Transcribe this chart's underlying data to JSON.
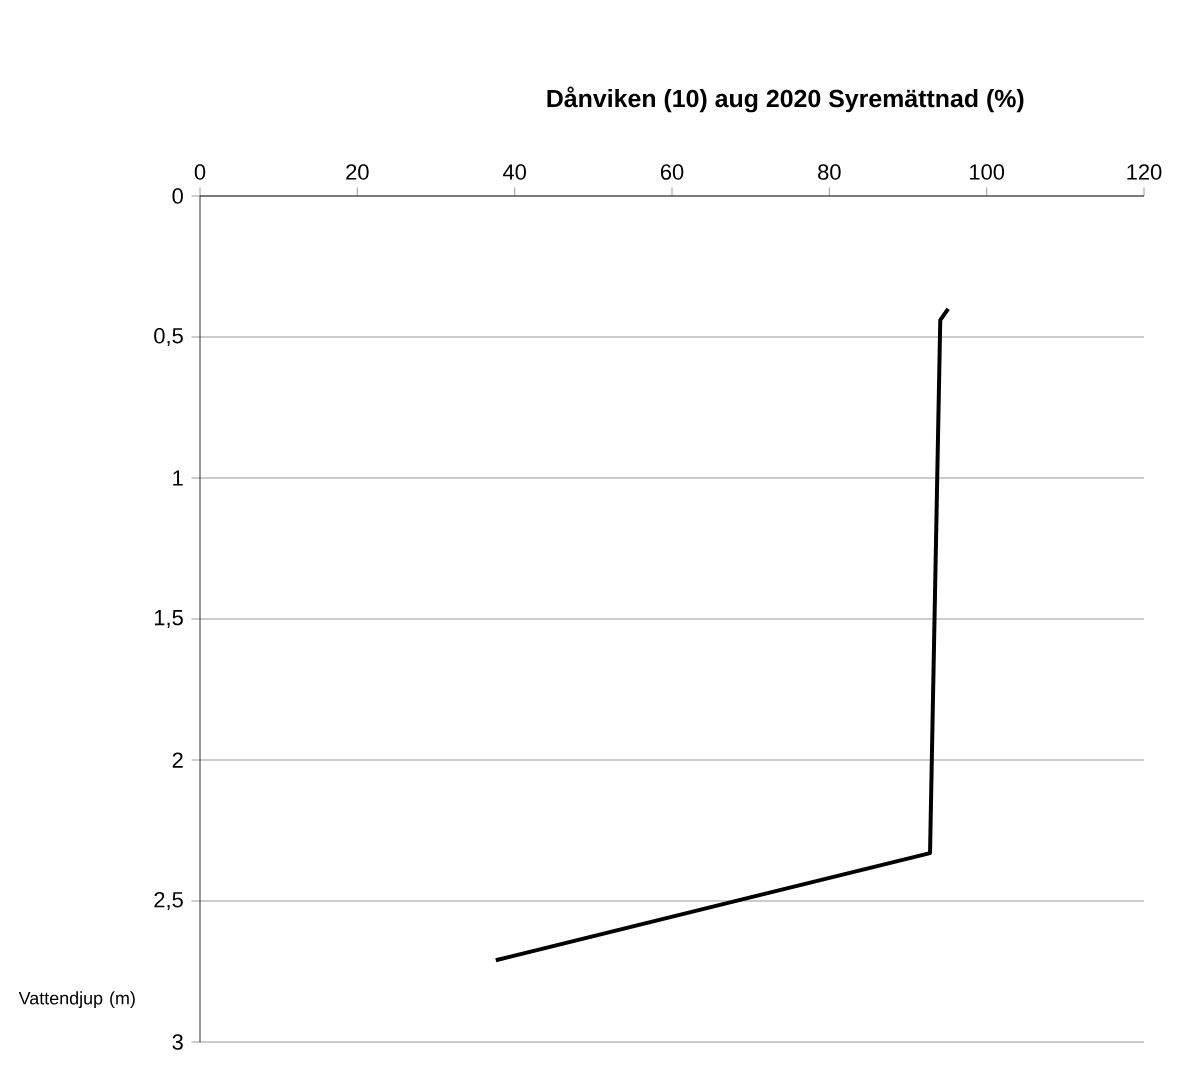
{
  "chart_data": {
    "type": "line",
    "title": "Dånviken (10) aug 2020 Syremättnad (%)",
    "ylabel": "Vattendjup (m)",
    "x": [
      95.1,
      94.1,
      92.8,
      37.6
    ],
    "series": [
      {
        "color": "#000000",
        "values": [
          0.4,
          0.44,
          2.33,
          2.71
        ]
      }
    ],
    "xlim": [
      0,
      120
    ],
    "xticks": [
      0,
      20,
      40,
      60,
      80,
      100,
      120
    ],
    "ylim": [
      3,
      0
    ],
    "yticks": [
      {
        "value": 0,
        "label": "0"
      },
      {
        "value": 0.5,
        "label": "0,5"
      },
      {
        "value": 1,
        "label": "1"
      },
      {
        "value": 1.5,
        "label": "1,5"
      },
      {
        "value": 2,
        "label": "2"
      },
      {
        "value": 2.5,
        "label": "2,5"
      },
      {
        "value": 3,
        "label": "3"
      }
    ],
    "grid": "y",
    "marker": "none",
    "line_style": "solid"
  }
}
